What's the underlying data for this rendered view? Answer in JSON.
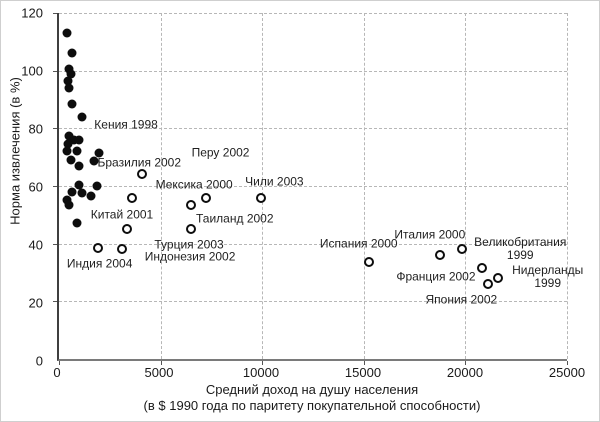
{
  "chart_data": {
    "type": "scatter",
    "title": "",
    "ylabel": "Норма извлечения (в %)",
    "xlabel_line1": "Средний доход на душу населения",
    "xlabel_line2": "(в $ 1990 года по паритету покупательной способности)",
    "xlim": [
      0,
      25000
    ],
    "ylim": [
      0,
      120
    ],
    "xticks": [
      0,
      5000,
      10000,
      15000,
      20000,
      25000
    ],
    "yticks": [
      0,
      20,
      40,
      60,
      80,
      100,
      120
    ],
    "grid": "dashed",
    "legend": "none",
    "marker_color": "#0d0d0d",
    "series": [
      {
        "name": "filled-points",
        "marker": "filled-circle",
        "points": [
          [
            415,
            113
          ],
          [
            660,
            106
          ],
          [
            500,
            100.5
          ],
          [
            575,
            99
          ],
          [
            465,
            96.5
          ],
          [
            510,
            94
          ],
          [
            660,
            88.5
          ],
          [
            1150,
            84
          ],
          [
            500,
            77.5
          ],
          [
            745,
            76
          ],
          [
            990,
            76
          ],
          [
            450,
            74.5
          ],
          [
            415,
            72
          ],
          [
            905,
            72
          ],
          [
            1970,
            71.5
          ],
          [
            575,
            69
          ],
          [
            1720,
            68.5
          ],
          [
            990,
            67
          ],
          [
            990,
            60.5
          ],
          [
            1880,
            60
          ],
          [
            660,
            58
          ],
          [
            1150,
            57.5
          ],
          [
            1560,
            56.5
          ],
          [
            415,
            55
          ],
          [
            500,
            53.5
          ],
          [
            905,
            47
          ]
        ]
      },
      {
        "name": "open-points",
        "marker": "open-circle",
        "points": [
          [
            4100,
            64
          ],
          [
            3600,
            56
          ],
          [
            7250,
            56
          ],
          [
            9950,
            56
          ],
          [
            6500,
            53.5
          ],
          [
            3350,
            45
          ],
          [
            6500,
            45
          ],
          [
            1900,
            38.5
          ],
          [
            3100,
            38
          ],
          [
            15250,
            33.5
          ],
          [
            18750,
            36
          ],
          [
            19850,
            38
          ],
          [
            20800,
            31.5
          ],
          [
            21600,
            28
          ],
          [
            21100,
            26
          ]
        ]
      }
    ],
    "annotations": [
      {
        "text": "Кения 1998",
        "x": 3300,
        "y": 81
      },
      {
        "text": "Перу 2002",
        "x": 7950,
        "y": 71.5
      },
      {
        "text": "Бразилия 2002",
        "x": 3950,
        "y": 68
      },
      {
        "text": "Мексика 2000",
        "x": 6650,
        "y": 60.5
      },
      {
        "text": "Чили 2003",
        "x": 10600,
        "y": 61.5
      },
      {
        "text": "Китай 2001",
        "x": 3100,
        "y": 50
      },
      {
        "text": "Таиланд 2002",
        "x": 8650,
        "y": 48.5
      },
      {
        "text": "Турция 2003",
        "x": 6400,
        "y": 39.5
      },
      {
        "text": "Индонезия 2002",
        "x": 6450,
        "y": 35.5
      },
      {
        "text": "Индия 2004",
        "x": 2000,
        "y": 33
      },
      {
        "text": "Испания 2000",
        "x": 14750,
        "y": 40
      },
      {
        "text": "Италия 2000",
        "x": 18250,
        "y": 43
      },
      {
        "text": "Великобритания\n1999",
        "x": 22700,
        "y": 38
      },
      {
        "text": "Франция 2002",
        "x": 18550,
        "y": 28.5
      },
      {
        "text": "Нидерланды\n1999",
        "x": 24050,
        "y": 28.5
      },
      {
        "text": "Япония 2002",
        "x": 19800,
        "y": 20.5
      }
    ]
  }
}
